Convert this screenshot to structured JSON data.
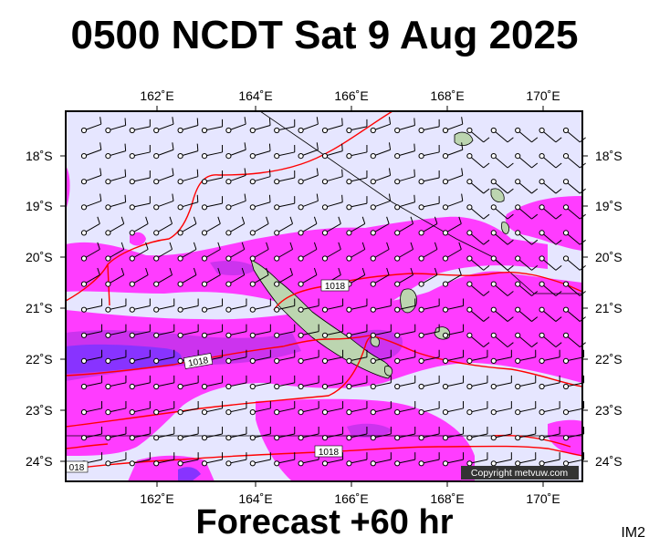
{
  "title": "0500 NCDT Sat 9 Aug 2025",
  "footer": "Forecast +60 hr",
  "corner_label": "IM2",
  "copyright": "Copyright metvuw.com",
  "lon_labels": [
    "162˚E",
    "164˚E",
    "166˚E",
    "168˚E",
    "170˚E"
  ],
  "lat_labels": [
    "18˚S",
    "19˚S",
    "20˚S",
    "21˚S",
    "22˚S",
    "23˚S",
    "24˚S"
  ],
  "isobar_labels": [
    "1018",
    "1018",
    "1018",
    "018"
  ],
  "colors": {
    "background": "#e6e6ff",
    "rain_light": "#ff3cff",
    "rain_medium": "#cc33ee",
    "rain_heavy": "#8833ff",
    "isobar": "#ff0000",
    "land": "#bcd5b0"
  }
}
